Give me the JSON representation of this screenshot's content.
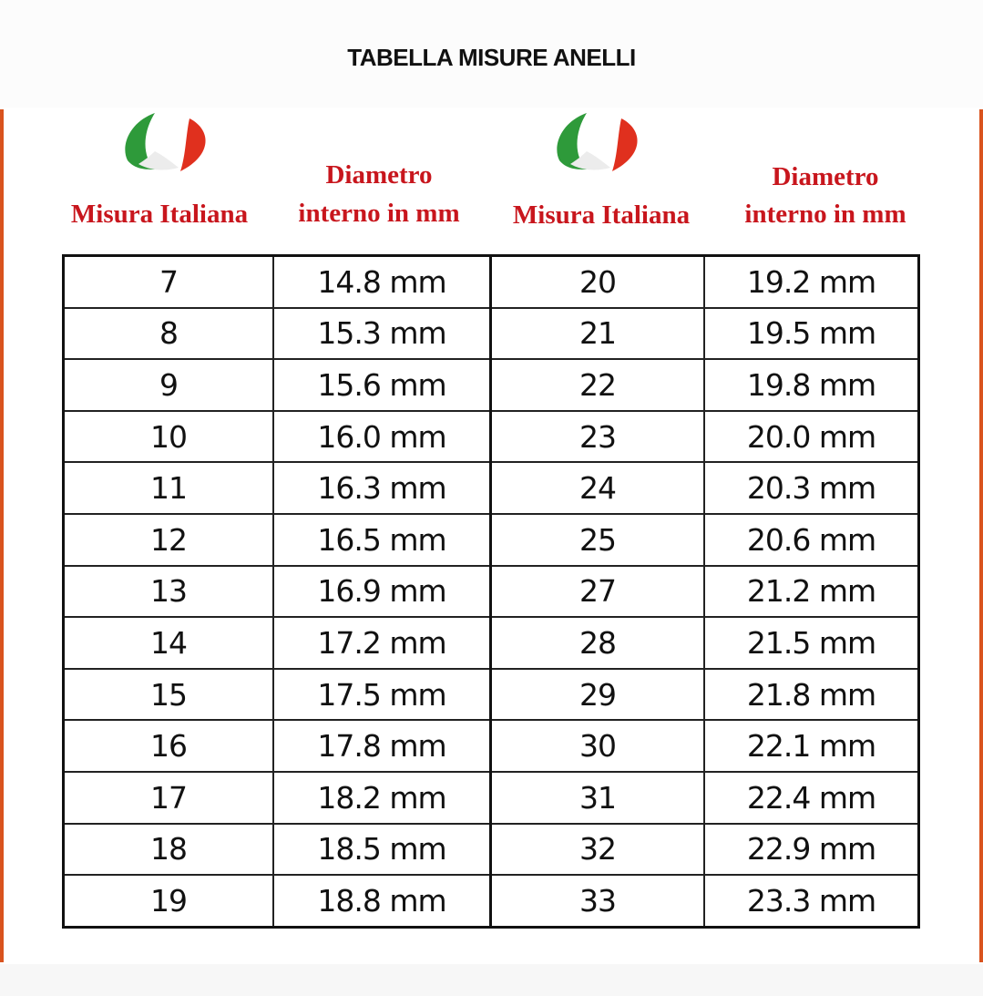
{
  "title": "TABELLA MISURE ANELLI",
  "colors": {
    "header_red": "#c8161d",
    "edge_orange": "#d9531e",
    "flag_green": "#2e9a3a",
    "flag_red": "#e0301e"
  },
  "headers": {
    "left": {
      "size": "Misura Italiana",
      "diameter_line1": "Diametro",
      "diameter_line2": "interno in mm",
      "icon": "italian-flag-icon"
    },
    "right": {
      "size": "Misura Italiana",
      "diameter_line1": "Diametro",
      "diameter_line2": "interno in mm",
      "icon": "italian-flag-icon"
    }
  },
  "rows": [
    {
      "size_a": "7",
      "diam_a": "14.8 mm",
      "size_b": "20",
      "diam_b": "19.2 mm"
    },
    {
      "size_a": "8",
      "diam_a": "15.3 mm",
      "size_b": "21",
      "diam_b": "19.5 mm"
    },
    {
      "size_a": "9",
      "diam_a": "15.6 mm",
      "size_b": "22",
      "diam_b": "19.8 mm"
    },
    {
      "size_a": "10",
      "diam_a": "16.0 mm",
      "size_b": "23",
      "diam_b": "20.0 mm"
    },
    {
      "size_a": "11",
      "diam_a": "16.3 mm",
      "size_b": "24",
      "diam_b": "20.3 mm"
    },
    {
      "size_a": "12",
      "diam_a": "16.5 mm",
      "size_b": "25",
      "diam_b": "20.6 mm"
    },
    {
      "size_a": "13",
      "diam_a": "16.9 mm",
      "size_b": "27",
      "diam_b": "21.2 mm"
    },
    {
      "size_a": "14",
      "diam_a": "17.2 mm",
      "size_b": "28",
      "diam_b": "21.5 mm"
    },
    {
      "size_a": "15",
      "diam_a": "17.5 mm",
      "size_b": "29",
      "diam_b": "21.8 mm"
    },
    {
      "size_a": "16",
      "diam_a": "17.8 mm",
      "size_b": "30",
      "diam_b": "22.1 mm"
    },
    {
      "size_a": "17",
      "diam_a": "18.2 mm",
      "size_b": "31",
      "diam_b": "22.4 mm"
    },
    {
      "size_a": "18",
      "diam_a": "18.5 mm",
      "size_b": "32",
      "diam_b": "22.9 mm"
    },
    {
      "size_a": "19",
      "diam_a": "18.8 mm",
      "size_b": "33",
      "diam_b": "23.3 mm"
    }
  ]
}
